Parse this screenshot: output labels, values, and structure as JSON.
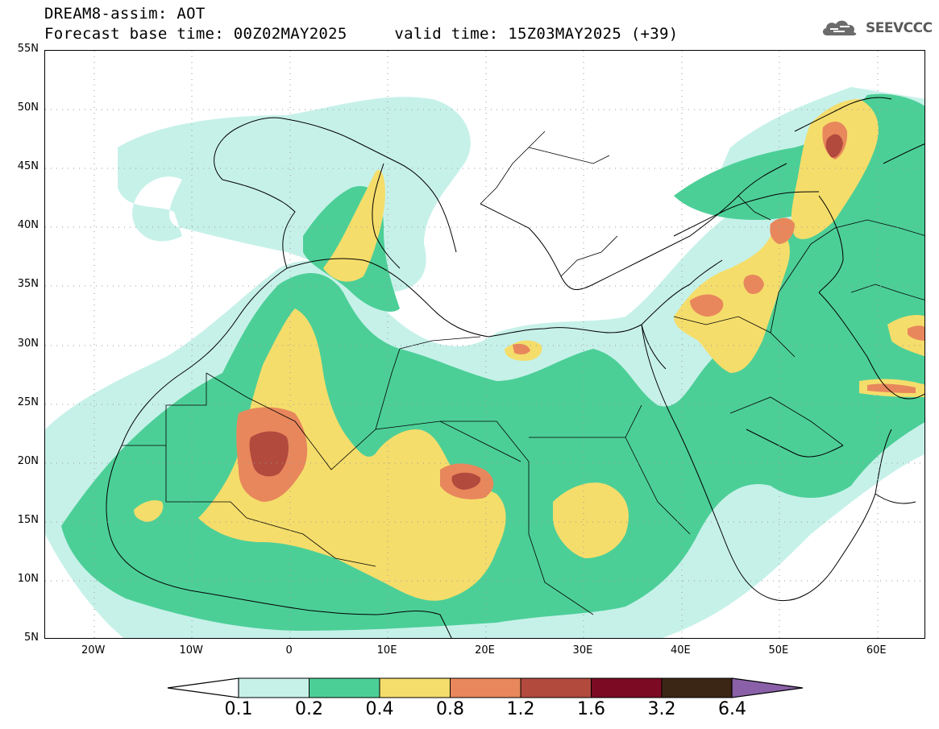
{
  "header": {
    "line1": "DREAM8-assim: AOT",
    "line2": "Forecast base time: 00Z02MAY2025     valid time: 15Z03MAY2025 (+39)"
  },
  "logo": {
    "text": "SEEVCCC",
    "icon": "cloud-logo-icon"
  },
  "map": {
    "lat_labels": [
      "55N",
      "50N",
      "45N",
      "40N",
      "35N",
      "30N",
      "25N",
      "20N",
      "15N",
      "10N",
      "5N"
    ],
    "lon_labels": [
      "20W",
      "10W",
      "0",
      "10E",
      "20E",
      "30E",
      "40E",
      "50E",
      "60E"
    ],
    "extent": {
      "lon_min": -25,
      "lon_max": 65,
      "lat_min": 5,
      "lat_max": 55
    }
  },
  "colorbar": {
    "labels": [
      "0.1",
      "0.2",
      "0.4",
      "0.8",
      "1.2",
      "1.6",
      "3.2",
      "6.4"
    ],
    "colors": [
      "#c6f1e9",
      "#4ccf97",
      "#f5dd6b",
      "#e8875c",
      "#b24a3e",
      "#7b0a22",
      "#3b2616",
      "#8a61a8"
    ],
    "below_color": "#ffffff"
  }
}
